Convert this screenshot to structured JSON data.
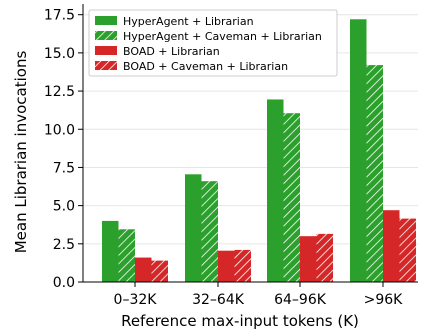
{
  "colors": {
    "green": "#2ca02c",
    "red": "#d62728",
    "grid": "#e6e6e6",
    "axis": "#000000"
  },
  "chart_data": {
    "type": "bar",
    "title": "",
    "xlabel": "Reference max-input tokens (K)",
    "ylabel": "Mean Librarian invocations",
    "categories": [
      "0–32K",
      "32–64K",
      "64–96K",
      ">96K"
    ],
    "ylim": [
      0,
      18.2
    ],
    "yticks": [
      "0.0",
      "2.5",
      "5.0",
      "7.5",
      "10.0",
      "12.5",
      "15.0",
      "17.5"
    ],
    "grid": "horizontal",
    "legend_position": "top-left",
    "series": [
      {
        "name": "HyperAgent + Librarian",
        "color": "#2ca02c",
        "hatch": false,
        "values": [
          4.0,
          7.05,
          11.95,
          17.2
        ]
      },
      {
        "name": "HyperAgent + Caveman + Librarian",
        "color": "#2ca02c",
        "hatch": true,
        "values": [
          3.45,
          6.6,
          11.05,
          14.2
        ]
      },
      {
        "name": "BOAD + Librarian",
        "color": "#d62728",
        "hatch": false,
        "values": [
          1.6,
          2.05,
          3.0,
          4.7
        ]
      },
      {
        "name": "BOAD + Caveman + Librarian",
        "color": "#d62728",
        "hatch": true,
        "values": [
          1.4,
          2.1,
          3.15,
          4.15
        ]
      }
    ]
  }
}
